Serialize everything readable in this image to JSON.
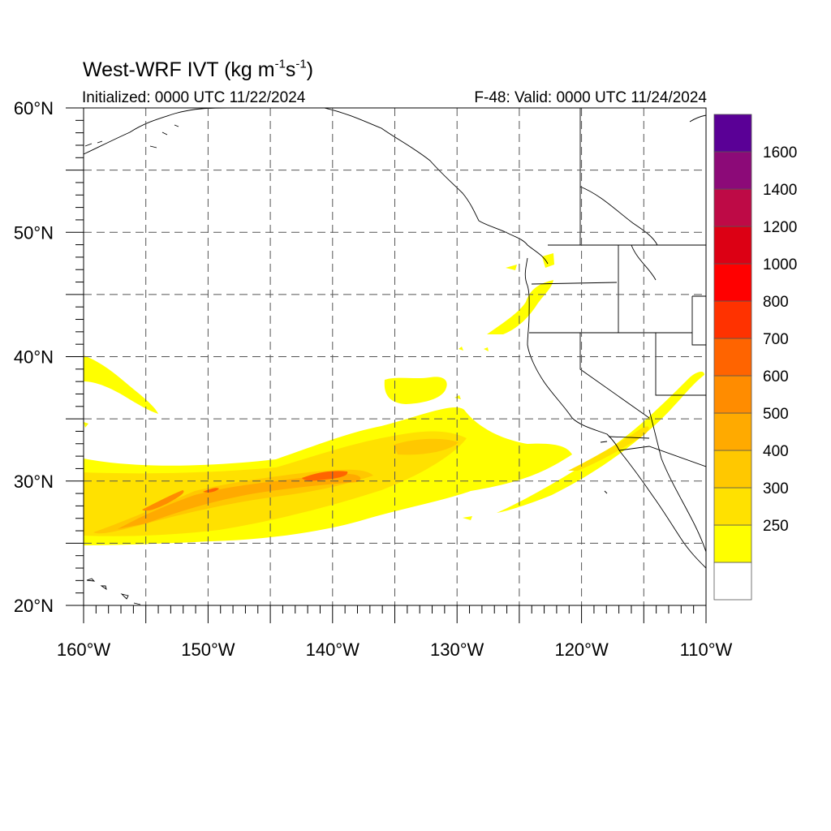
{
  "title": {
    "prefix": "West-WRF IVT (kg m",
    "exp1": "-1",
    "mid": "s",
    "exp2": "-1",
    "suffix": ")"
  },
  "initialized": "Initialized: 0000 UTC 11/22/2024",
  "valid": "F-48: Valid: 0000 UTC 11/24/2024",
  "map": {
    "lon_range": [
      -160,
      -110
    ],
    "lat_range": [
      20,
      60
    ],
    "grid_lon_step": 5,
    "grid_lat_step": 5,
    "grid_style": "dashed",
    "lon_labels": [
      {
        "lon": -160,
        "text": "160°W"
      },
      {
        "lon": -150,
        "text": "150°W"
      },
      {
        "lon": -140,
        "text": "140°W"
      },
      {
        "lon": -130,
        "text": "130°W"
      },
      {
        "lon": -120,
        "text": "120°W"
      },
      {
        "lon": -110,
        "text": "110°W"
      }
    ],
    "lat_labels": [
      {
        "lat": 60,
        "text": "60°N"
      },
      {
        "lat": 50,
        "text": "50°N"
      },
      {
        "lat": 40,
        "text": "40°N"
      },
      {
        "lat": 30,
        "text": "30°N"
      },
      {
        "lat": 20,
        "text": "20°N"
      }
    ]
  },
  "colorbar": {
    "levels": [
      {
        "color": "#ffffff"
      },
      {
        "color": "#ffff00",
        "label": "250"
      },
      {
        "color": "#ffe100",
        "label": "300"
      },
      {
        "color": "#ffc800",
        "label": "400"
      },
      {
        "color": "#ffaa00",
        "label": "500"
      },
      {
        "color": "#ff8c00",
        "label": "600"
      },
      {
        "color": "#ff6400",
        "label": "700"
      },
      {
        "color": "#ff3200",
        "label": "800"
      },
      {
        "color": "#ff0000",
        "label": "1000"
      },
      {
        "color": "#dc0014",
        "label": "1200"
      },
      {
        "color": "#be0a46",
        "label": "1400"
      },
      {
        "color": "#8c0a78",
        "label": "1600"
      },
      {
        "color": "#5a0096"
      }
    ]
  }
}
